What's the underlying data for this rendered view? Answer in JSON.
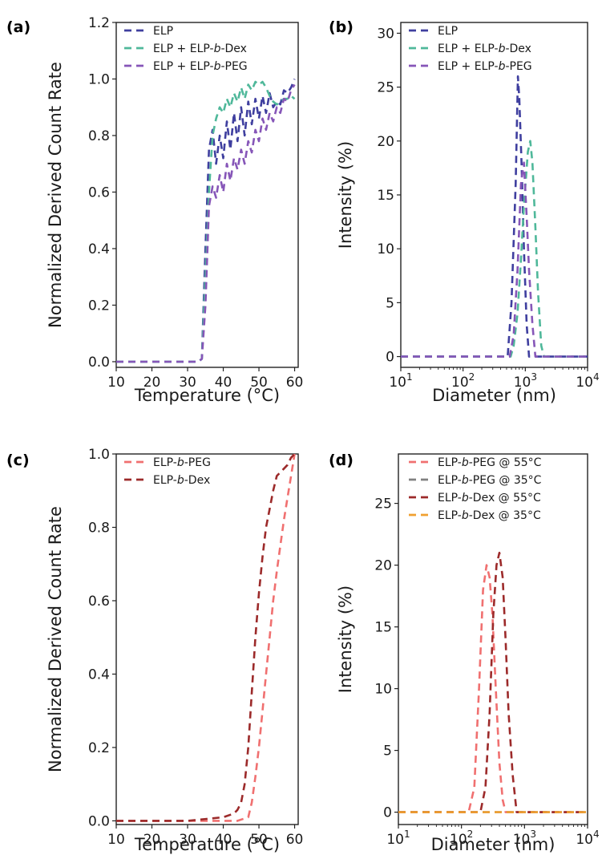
{
  "chart_data": [
    {
      "panel": "(a)",
      "type": "line",
      "xlabel": "Temperature (°C)",
      "ylabel": "Normalized Derived Count Rate",
      "xlim": [
        10,
        61
      ],
      "ylim": [
        -0.02,
        1.2
      ],
      "xticks": [
        "10",
        "20",
        "30",
        "40",
        "50",
        "60"
      ],
      "yticks": [
        "0.0",
        "0.2",
        "0.4",
        "0.6",
        "0.8",
        "1.0",
        "1.2"
      ],
      "xticks_values": [
        10,
        20,
        30,
        40,
        50,
        60
      ],
      "yticks_values": [
        0.0,
        0.2,
        0.4,
        0.6,
        0.8,
        1.0,
        1.2
      ],
      "x_scale": "linear",
      "legend": "top-left",
      "series": [
        {
          "name": "ELP",
          "color": "#3f3f9f",
          "x": [
            10,
            20,
            30,
            33,
            34,
            35,
            36,
            37,
            38,
            39,
            40,
            41,
            42,
            43,
            44,
            45,
            46,
            47,
            48,
            49,
            50,
            51,
            52,
            53,
            54,
            55,
            56,
            57,
            58,
            59,
            60
          ],
          "y": [
            0.0,
            0.0,
            0.0,
            0.0,
            0.01,
            0.4,
            0.75,
            0.82,
            0.7,
            0.8,
            0.72,
            0.85,
            0.75,
            0.88,
            0.78,
            0.9,
            0.8,
            0.92,
            0.84,
            0.93,
            0.86,
            0.94,
            0.88,
            0.95,
            0.9,
            0.92,
            0.91,
            0.96,
            0.95,
            0.97,
            1.0
          ]
        },
        {
          "name": "ELP + ELP-b-Dex",
          "color": "#4fb89a",
          "x": [
            10,
            20,
            30,
            33,
            34,
            35,
            36,
            37,
            38,
            39,
            40,
            41,
            42,
            43,
            44,
            45,
            46,
            47,
            48,
            49,
            50,
            51,
            52,
            53,
            54,
            55,
            56,
            57,
            58,
            59,
            60
          ],
          "y": [
            0.0,
            0.0,
            0.0,
            0.0,
            0.01,
            0.3,
            0.6,
            0.8,
            0.86,
            0.9,
            0.88,
            0.93,
            0.9,
            0.95,
            0.92,
            0.97,
            0.93,
            0.98,
            0.96,
            0.99,
            0.98,
            0.99,
            0.97,
            0.94,
            0.92,
            0.91,
            0.92,
            0.93,
            0.93,
            0.94,
            0.93
          ]
        },
        {
          "name": "ELP + ELP-b-PEG",
          "color": "#8656b8",
          "x": [
            10,
            20,
            30,
            33,
            34,
            35,
            36,
            37,
            38,
            39,
            40,
            41,
            42,
            43,
            44,
            45,
            46,
            47,
            48,
            49,
            50,
            51,
            52,
            53,
            54,
            55,
            56,
            57,
            58,
            59,
            60
          ],
          "y": [
            0.0,
            0.0,
            0.0,
            0.0,
            0.01,
            0.2,
            0.55,
            0.62,
            0.58,
            0.66,
            0.6,
            0.7,
            0.64,
            0.72,
            0.68,
            0.75,
            0.7,
            0.78,
            0.74,
            0.82,
            0.78,
            0.86,
            0.82,
            0.88,
            0.85,
            0.9,
            0.88,
            0.93,
            0.92,
            0.96,
            0.98
          ]
        }
      ]
    },
    {
      "panel": "(b)",
      "type": "line",
      "xlabel": "Diameter (nm)",
      "ylabel": "Intensity (%)",
      "xlim": [
        10,
        10000
      ],
      "ylim": [
        -1,
        31
      ],
      "x_scale": "log",
      "xticks_values": [
        10,
        100,
        1000,
        10000
      ],
      "xticks": [
        [
          "10",
          "1"
        ],
        [
          "10",
          "2"
        ],
        [
          "10",
          "3"
        ],
        [
          "10",
          "4"
        ]
      ],
      "yticks": [
        "0",
        "5",
        "10",
        "15",
        "20",
        "25",
        "30"
      ],
      "yticks_values": [
        0,
        5,
        10,
        15,
        20,
        25,
        30
      ],
      "legend": "top-left",
      "series": [
        {
          "name": "ELP",
          "color": "#3f3f9f",
          "x": [
            10,
            400,
            520,
            600,
            700,
            760,
            800,
            870,
            950,
            1050,
            1150,
            1300,
            1500,
            1700,
            2000,
            10000
          ],
          "y": [
            0,
            0,
            0,
            5,
            16,
            26,
            24,
            18,
            10,
            3,
            0,
            0,
            0,
            0,
            0,
            0
          ]
        },
        {
          "name": "ELP + ELP-b-Dex",
          "color": "#4fb89a",
          "x": [
            10,
            400,
            580,
            650,
            750,
            850,
            950,
            1100,
            1200,
            1300,
            1450,
            1600,
            1800,
            2000,
            2200,
            10000
          ],
          "y": [
            0,
            0,
            0,
            1,
            4,
            9,
            14,
            19,
            20,
            18,
            12,
            6,
            1,
            0,
            0,
            0
          ]
        },
        {
          "name": "ELP + ELP-b-PEG",
          "color": "#8656b8",
          "x": [
            10,
            400,
            560,
            650,
            750,
            850,
            950,
            1050,
            1150,
            1300,
            1450,
            1600,
            1800,
            2000,
            10000
          ],
          "y": [
            0,
            0,
            0,
            2,
            8,
            16,
            18,
            13,
            8,
            3,
            0,
            0,
            0,
            0,
            0
          ]
        }
      ]
    },
    {
      "panel": "(c)",
      "type": "line",
      "xlabel": "Temperature (°C)",
      "ylabel": "Normalized Derived Count Rate",
      "xlim": [
        10,
        61
      ],
      "ylim": [
        -0.01,
        1.0
      ],
      "xticks": [
        "10",
        "20",
        "30",
        "40",
        "50",
        "60"
      ],
      "yticks": [
        "0.0",
        "0.2",
        "0.4",
        "0.6",
        "0.8",
        "1.0"
      ],
      "xticks_values": [
        10,
        20,
        30,
        40,
        50,
        60
      ],
      "yticks_values": [
        0.0,
        0.2,
        0.4,
        0.6,
        0.8,
        1.0
      ],
      "x_scale": "linear",
      "legend": "top-left",
      "series": [
        {
          "name": "ELP-b-PEG",
          "color": "#f07070",
          "x": [
            10,
            20,
            30,
            40,
            44,
            47,
            48,
            49,
            50,
            51,
            52,
            53,
            54,
            55,
            56,
            57,
            58,
            59,
            60
          ],
          "y": [
            0.0,
            0.0,
            0.0,
            0.0,
            0.0,
            0.01,
            0.05,
            0.12,
            0.2,
            0.3,
            0.4,
            0.5,
            0.6,
            0.68,
            0.75,
            0.82,
            0.88,
            0.94,
            1.0
          ]
        },
        {
          "name": "ELP-b-Dex",
          "color": "#9c2a2a",
          "x": [
            10,
            20,
            30,
            40,
            43,
            44,
            45,
            46,
            47,
            48,
            49,
            50,
            51,
            52,
            53,
            54,
            55,
            56,
            57,
            58,
            59,
            60
          ],
          "y": [
            0.0,
            0.0,
            0.0,
            0.01,
            0.02,
            0.03,
            0.05,
            0.1,
            0.2,
            0.35,
            0.5,
            0.62,
            0.72,
            0.8,
            0.85,
            0.9,
            0.94,
            0.95,
            0.96,
            0.97,
            0.99,
            1.0
          ]
        }
      ]
    },
    {
      "panel": "(d)",
      "type": "line",
      "xlabel": "Diameter (nm)",
      "ylabel": "Intensity (%)",
      "xlim": [
        10,
        10000
      ],
      "ylim": [
        -1,
        29
      ],
      "x_scale": "log",
      "xticks_values": [
        10,
        100,
        1000,
        10000
      ],
      "xticks": [
        [
          "10",
          "1"
        ],
        [
          "10",
          "2"
        ],
        [
          "10",
          "3"
        ],
        [
          "10",
          "4"
        ]
      ],
      "yticks": [
        "0",
        "5",
        "10",
        "15",
        "20",
        "25"
      ],
      "yticks_values": [
        0,
        5,
        10,
        15,
        20,
        25
      ],
      "legend": "top-left",
      "series": [
        {
          "name": "ELP-b-PEG @ 55°C",
          "color": "#f07070",
          "x": [
            10,
            100,
            130,
            160,
            190,
            220,
            250,
            280,
            310,
            350,
            400,
            450,
            500,
            560,
            10000
          ],
          "y": [
            0,
            0,
            0,
            2,
            10,
            18,
            20,
            19,
            16,
            10,
            4,
            1,
            0,
            0,
            0
          ]
        },
        {
          "name": "ELP-b-PEG @ 35°C",
          "color": "#808080",
          "x": [
            10,
            10000
          ],
          "y": [
            0,
            0
          ]
        },
        {
          "name": "ELP-b-Dex @ 55°C",
          "color": "#9c2a2a",
          "x": [
            10,
            150,
            200,
            240,
            280,
            320,
            360,
            400,
            450,
            500,
            560,
            650,
            750,
            850,
            10000
          ],
          "y": [
            0,
            0,
            0,
            2,
            8,
            16,
            20,
            21,
            19,
            14,
            8,
            3,
            0,
            0,
            0
          ]
        },
        {
          "name": "ELP-b-Dex @ 35°C",
          "color": "#f0a030",
          "x": [
            10,
            10000
          ],
          "y": [
            0,
            0
          ]
        }
      ]
    }
  ]
}
